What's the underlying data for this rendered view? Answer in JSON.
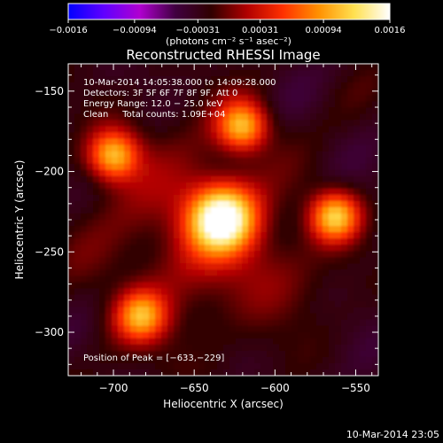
{
  "chart_data": {
    "type": "heatmap",
    "title": "Reconstructed RHESSI Image",
    "xlabel": "Heliocentric X (arcsec)",
    "ylabel": "Heliocentric Y (arcsec)",
    "xlim": [
      -728,
      -536
    ],
    "ylim": [
      -327,
      -133
    ],
    "xticks": [
      -700,
      -650,
      -600,
      -550
    ],
    "xtick_labels": [
      "−700",
      "−650",
      "−600",
      "−550"
    ],
    "yticks": [
      -150,
      -200,
      -250,
      -300
    ],
    "ytick_labels": [
      "−150",
      "−200",
      "−250",
      "−300"
    ],
    "colorbar": {
      "ticks": [
        -0.0016,
        -0.00094,
        -0.00031,
        0.00031,
        0.00094,
        0.0016
      ],
      "tick_labels": [
        "−0.0016",
        "−0.00094",
        "−0.00031",
        "0.00031",
        "0.00094",
        "0.0016"
      ],
      "unit_label": "(photons cm⁻² s⁻¹ asec⁻²)",
      "colormap": [
        "#0000ff",
        "#6000ff",
        "#b000d0",
        "#400040",
        "#300000",
        "#b00000",
        "#ff3000",
        "#ff9000",
        "#ffe050",
        "#ffffff"
      ],
      "range": [
        -0.0016,
        0.0016
      ]
    },
    "annotations": [
      "10-Mar-2014 14:05:38.000 to 14:09:28.000",
      "Detectors: 3F 5F 6F 7F 8F 9F, Att 0",
      "Energy Range: 12.0 − 25.0 keV",
      "Clean     Total counts: 1.09E+04"
    ],
    "peak_label": "Position of Peak = [−633,−229]",
    "sources": [
      {
        "x": -633,
        "y": -229,
        "value": 0.0016
      },
      {
        "x": -620,
        "y": -172,
        "value": 0.001
      },
      {
        "x": -700,
        "y": -190,
        "value": 0.001
      },
      {
        "x": -563,
        "y": -228,
        "value": 0.0011
      },
      {
        "x": -683,
        "y": -290,
        "value": 0.0008
      }
    ],
    "background_level": -0.0003,
    "grid": false
  },
  "footer": {
    "timestamp": "10-Mar-2014 23:05"
  }
}
